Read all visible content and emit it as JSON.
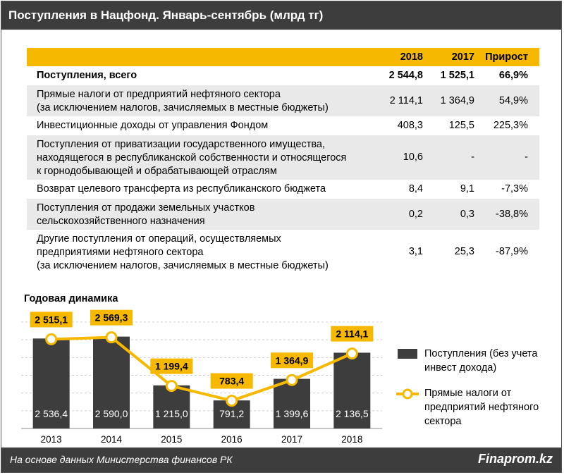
{
  "header": {
    "title": "Поступления в Нацфонд. Январь-сентябрь (млрд тг)"
  },
  "table": {
    "columns": [
      "2018",
      "2017",
      "Прирост"
    ],
    "rows": [
      {
        "lines": [
          "Поступления, всего"
        ],
        "v2018": "2 544,8",
        "v2017": "1 525,1",
        "growth": "66,9%"
      },
      {
        "lines": [
          "Прямые налоги от предприятий нефтяного сектора",
          "(за исключением налогов, зачисляемых в местные бюджеты)"
        ],
        "v2018": "2 114,1",
        "v2017": "1 364,9",
        "growth": "54,9%"
      },
      {
        "lines": [
          "Инвестиционные доходы от управления Фондом"
        ],
        "v2018": "408,3",
        "v2017": "125,5",
        "growth": "225,3%"
      },
      {
        "lines": [
          "Поступления от приватизации государственного имущества,",
          "находящегося в республиканской собственности и относящегося",
          "к горнодобывающей и обрабатывающей отраслям"
        ],
        "v2018": "10,6",
        "v2017": "-",
        "growth": "-"
      },
      {
        "lines": [
          "Возврат целевого трансферта из республиканского бюджета"
        ],
        "v2018": "8,4",
        "v2017": "9,1",
        "growth": "-7,3%"
      },
      {
        "lines": [
          "Поступления от продажи земельных участков",
          "сельскохозяйственного назначения"
        ],
        "v2018": "0,2",
        "v2017": "0,3",
        "growth": "-38,8%"
      },
      {
        "lines": [
          "Другие поступления от операций, осуществляемых",
          "предприятиями нефтяного сектора",
          "(за исключением налогов, зачисляемых в местные бюджеты)"
        ],
        "v2018": "3,1",
        "v2017": "25,3",
        "growth": "-87,9%"
      }
    ]
  },
  "chart_data": {
    "type": "bar",
    "title": "Годовая динамика",
    "categories": [
      "2013",
      "2014",
      "2015",
      "2016",
      "2017",
      "2018"
    ],
    "series": [
      {
        "name": "Поступления (без учета инвест дохода)",
        "type": "bar",
        "color": "#3d3d3d",
        "values": [
          2536.4,
          2590.0,
          1215.0,
          791.2,
          1399.6,
          2136.5
        ],
        "labels": [
          "2 536,4",
          "2 590,0",
          "1 215,0",
          "791,2",
          "1 399,6",
          "2 136,5"
        ]
      },
      {
        "name": "Прямые налоги от предприятий нефтяного сектора",
        "type": "line",
        "color": "#f6b900",
        "values": [
          2515.1,
          2569.3,
          1199.4,
          783.4,
          1364.9,
          2114.1
        ],
        "labels": [
          "2 515,1",
          "2 569,3",
          "1 199,4",
          "783,4",
          "1 364,9",
          "2 114,1"
        ]
      }
    ],
    "ylim": [
      0,
      3000
    ],
    "xlabel": "",
    "ylabel": "",
    "legend_position": "right"
  },
  "legend": {
    "bar_lines": [
      "Поступления (без учета",
      "инвест дохода)"
    ],
    "line_lines": [
      "Прямые налоги от",
      "предприятий нефтяного",
      "сектора"
    ]
  },
  "footer": {
    "source": "На основе данных Министерства финансов РК",
    "brand": "Finaprom.kz"
  },
  "colors": {
    "accent": "#f6b900",
    "dark": "#3d3d3d",
    "shade": "#e9e9e9"
  }
}
